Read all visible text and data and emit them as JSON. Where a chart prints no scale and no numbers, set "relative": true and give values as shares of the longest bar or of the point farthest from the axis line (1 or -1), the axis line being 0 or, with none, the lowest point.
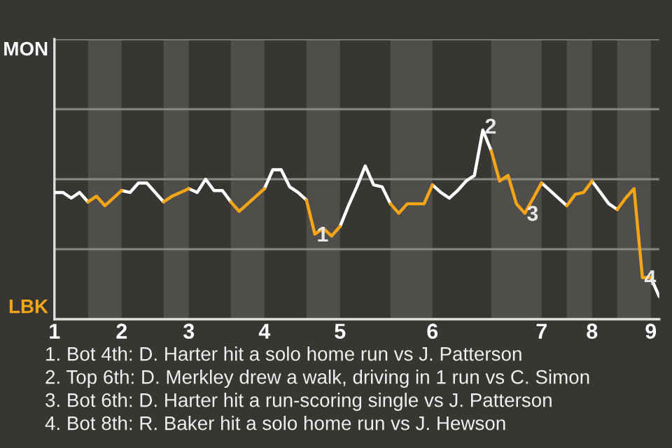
{
  "chart_data": {
    "type": "line",
    "relative": true,
    "categories": [
      "1",
      null,
      null,
      null,
      null,
      null,
      null,
      null,
      "2",
      null,
      null,
      null,
      null,
      null,
      null,
      null,
      "3",
      null,
      null,
      null,
      null,
      null,
      null,
      null,
      null,
      "4",
      null,
      null,
      null,
      null,
      null,
      null,
      null,
      null,
      "5",
      null,
      null,
      null,
      null,
      null,
      null,
      null,
      null,
      null,
      null,
      "6",
      null,
      null,
      null,
      null,
      null,
      null,
      null,
      null,
      null,
      null,
      null,
      null,
      "7",
      null,
      null,
      null,
      null,
      null,
      "8",
      null,
      null,
      null,
      null,
      null,
      null,
      "9",
      null
    ],
    "series": [
      {
        "name": "MON",
        "color": "#ffffff",
        "values": [
          0.67,
          0.67,
          0.64,
          0.67,
          0.62,
          null,
          null,
          null,
          0.68,
          0.67,
          0.72,
          0.72,
          0.67,
          0.62,
          null,
          null,
          0.69,
          0.67,
          0.74,
          0.68,
          0.68,
          0.62,
          null,
          null,
          null,
          0.69,
          0.79,
          0.79,
          0.7,
          0.67,
          0.63,
          null,
          null,
          null,
          0.49,
          0.6,
          0.7,
          0.81,
          0.71,
          0.7,
          0.61,
          null,
          null,
          null,
          null,
          0.71,
          0.67,
          0.64,
          0.68,
          0.73,
          0.76,
          1,
          0.89,
          null,
          null,
          null,
          null,
          null,
          0.72,
          0.68,
          0.64,
          0.6,
          null,
          null,
          0.73,
          0.67,
          0.61,
          0.58,
          null,
          null,
          null,
          0.22,
          0.12
        ]
      },
      {
        "name": "LBK",
        "color": "#f5a516",
        "values": [
          null,
          null,
          null,
          null,
          0.62,
          0.65,
          0.6,
          0.64,
          0.68,
          null,
          null,
          null,
          null,
          0.62,
          0.65,
          0.67,
          0.69,
          null,
          null,
          null,
          null,
          0.62,
          0.57,
          0.61,
          0.65,
          0.69,
          null,
          null,
          null,
          null,
          0.63,
          0.45,
          0.48,
          0.44,
          0.49,
          null,
          null,
          null,
          null,
          null,
          0.61,
          0.56,
          0.61,
          0.61,
          0.61,
          0.71,
          null,
          null,
          null,
          null,
          null,
          null,
          0.89,
          0.73,
          0.76,
          0.61,
          0.56,
          0.64,
          0.72,
          null,
          null,
          0.6,
          0.66,
          0.67,
          0.73,
          null,
          null,
          0.58,
          0.64,
          0.69,
          0.22,
          0.22,
          null
        ]
      }
    ],
    "ref_lines": [
      {
        "axis": "y",
        "value": 0.37,
        "color": "#8a8885"
      },
      {
        "axis": "y",
        "value": 0.74,
        "color": "#8a8885"
      },
      {
        "axis": "y",
        "value": 1.11,
        "color": "#8a8885"
      },
      {
        "axis": "y",
        "value": 1.48,
        "color": "#8a8885"
      }
    ],
    "annotations": [
      {
        "text": "1",
        "y": 0.45
      },
      {
        "text": "2",
        "y": 1
      },
      {
        "text": "3",
        "y": 0.56
      },
      {
        "text": "4",
        "y": 0.22
      },
      "1. Bot 4th: D. Harter hit a solo home run vs J. Patterson",
      "2. Top 6th: D. Merkley drew a walk, driving in 1 run vs C. Simon",
      "3. Bot 6th: D. Harter hit a run-scoring single vs J. Patterson",
      "4. Bot 8th: R. Baker hit a solo home run vs J. Hewson"
    ]
  }
}
